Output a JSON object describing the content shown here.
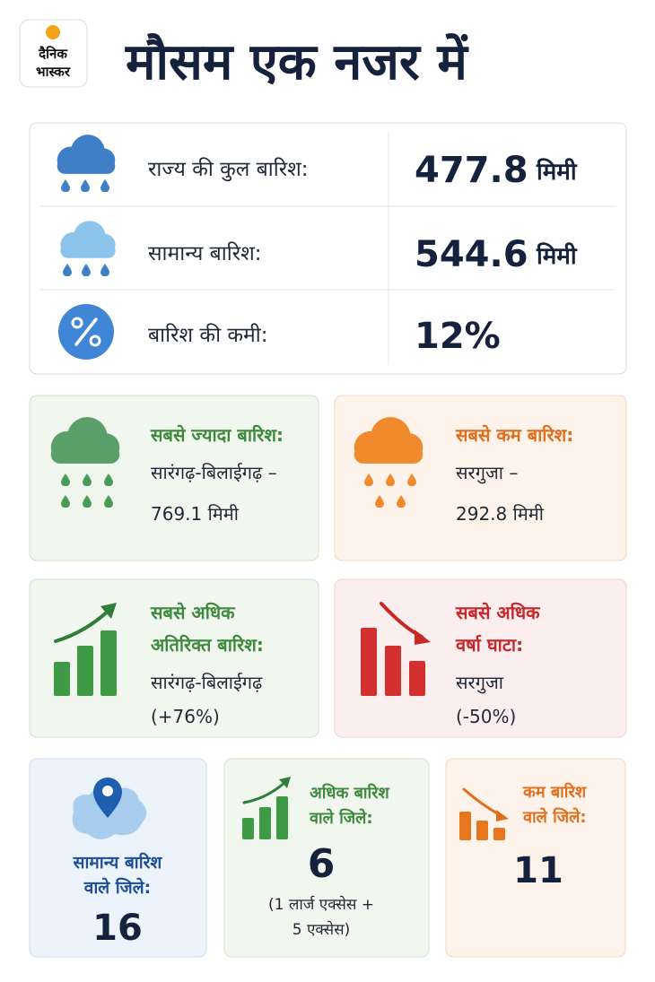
{
  "header": {
    "logo_lines": [
      "दैनिक",
      "भास्कर"
    ],
    "title": "मौसम एक नजर में"
  },
  "summary": [
    {
      "label": "राज्य की कुल बारिश:",
      "value": "477.8",
      "unit": "मिमी"
    },
    {
      "label": "सामान्य बारिश:",
      "value": "544.6",
      "unit": "मिमी"
    },
    {
      "label": "बारिश की कमी:",
      "value": "12%"
    }
  ],
  "cards": [
    {
      "title_lines": [
        "सबसे ज्यादा बारिश:"
      ],
      "place": "सारंगढ़-बिलाईगढ़ –",
      "value": "769.1 मिमी"
    },
    {
      "title_lines": [
        "सबसे कम बारिश:"
      ],
      "place": "सरगुजा –",
      "value": "292.8 मिमी"
    },
    {
      "title_lines": [
        "सबसे अधिक",
        "अतिरिक्त बारिश:"
      ],
      "place": "सारंगढ़-बिलाईगढ़",
      "value": "(+76%)"
    },
    {
      "title_lines": [
        "सबसे अधिक",
        "वर्षा घाटा:"
      ],
      "place": "सरगुजा",
      "value": "(-50%)"
    }
  ],
  "districts": [
    {
      "label_lines": [
        "सामान्य बारिश",
        "वाले जिले:"
      ],
      "count": "16"
    },
    {
      "label_lines": [
        "अधिक बारिश",
        "वाले जिले:"
      ],
      "count": "6",
      "note_lines": [
        "(1 लार्ज एक्सेस +",
        "5 एक्सेस)"
      ]
    },
    {
      "label_lines": [
        "कम बारिश",
        "वाले जिले:"
      ],
      "count": "11"
    }
  ]
}
